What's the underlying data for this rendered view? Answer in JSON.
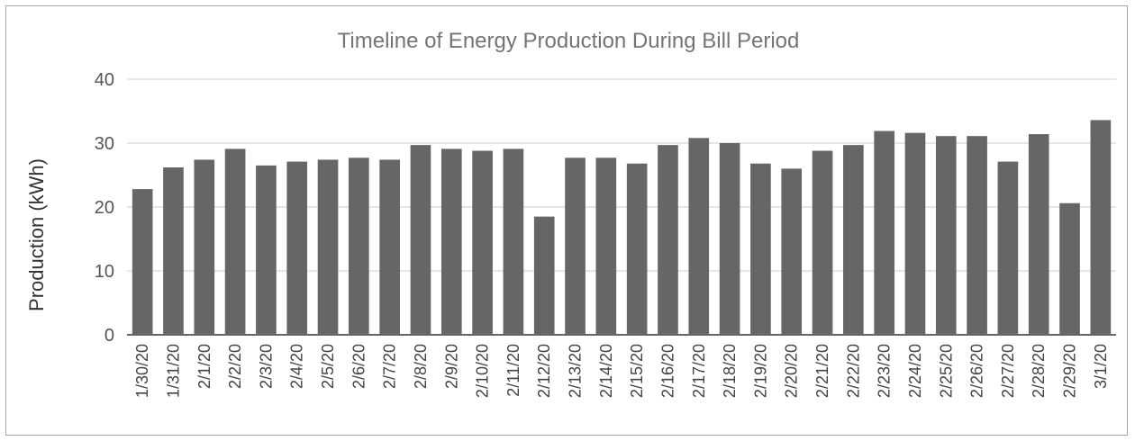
{
  "chart_data": {
    "type": "bar",
    "title": "Timeline of Energy Production During Bill Period",
    "xlabel": "",
    "ylabel": "Production (kWh)",
    "ylim": [
      0,
      40
    ],
    "yticks": [
      0,
      10,
      20,
      30,
      40
    ],
    "grid": true,
    "legend": "none",
    "bar_color": "#666666",
    "categories": [
      "1/30/20",
      "1/31/20",
      "2/1/20",
      "2/2/20",
      "2/3/20",
      "2/4/20",
      "2/5/20",
      "2/6/20",
      "2/7/20",
      "2/8/20",
      "2/9/20",
      "2/10/20",
      "2/11/20",
      "2/12/20",
      "2/13/20",
      "2/14/20",
      "2/15/20",
      "2/16/20",
      "2/17/20",
      "2/18/20",
      "2/19/20",
      "2/20/20",
      "2/21/20",
      "2/22/20",
      "2/23/20",
      "2/24/20",
      "2/25/20",
      "2/26/20",
      "2/27/20",
      "2/28/20",
      "2/29/20",
      "3/1/20"
    ],
    "values": [
      22.8,
      26.2,
      27.4,
      29.1,
      26.5,
      27.1,
      27.4,
      27.7,
      27.4,
      29.7,
      29.1,
      28.8,
      29.1,
      18.5,
      27.7,
      27.7,
      26.8,
      29.7,
      30.8,
      30.0,
      26.8,
      26.0,
      28.8,
      29.7,
      31.9,
      31.6,
      31.1,
      31.1,
      27.1,
      31.4,
      20.6,
      33.6
    ]
  }
}
